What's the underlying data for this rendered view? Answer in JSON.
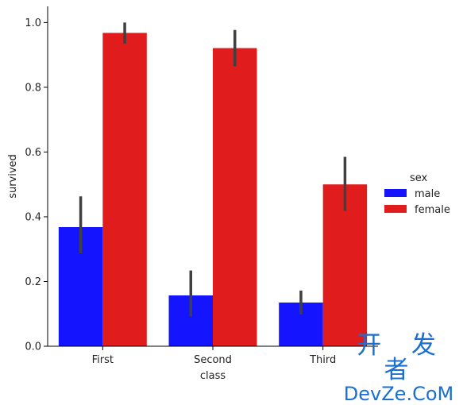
{
  "chart_data": {
    "type": "bar",
    "xlabel": "class",
    "ylabel": "survived",
    "categories": [
      "First",
      "Second",
      "Third"
    ],
    "ylim": [
      0,
      1.05
    ],
    "yticks": [
      "0.0",
      "0.2",
      "0.4",
      "0.6",
      "0.8",
      "1.0"
    ],
    "legend": {
      "title": "sex",
      "placement": "right"
    },
    "series": [
      {
        "name": "male",
        "color": "#1414ff",
        "values": [
          0.368,
          0.157,
          0.135
        ],
        "ci": [
          [
            0.287,
            0.463
          ],
          [
            0.092,
            0.234
          ],
          [
            0.098,
            0.172
          ]
        ]
      },
      {
        "name": "female",
        "color": "#e01c1c",
        "values": [
          0.968,
          0.921,
          0.5
        ],
        "ci": [
          [
            0.935,
            1.0
          ],
          [
            0.865,
            0.977
          ],
          [
            0.418,
            0.585
          ]
        ]
      }
    ],
    "error_bar_color": "#404040"
  },
  "watermark": {
    "line1": "开 发 者",
    "line2": "DevZe.CoM"
  }
}
